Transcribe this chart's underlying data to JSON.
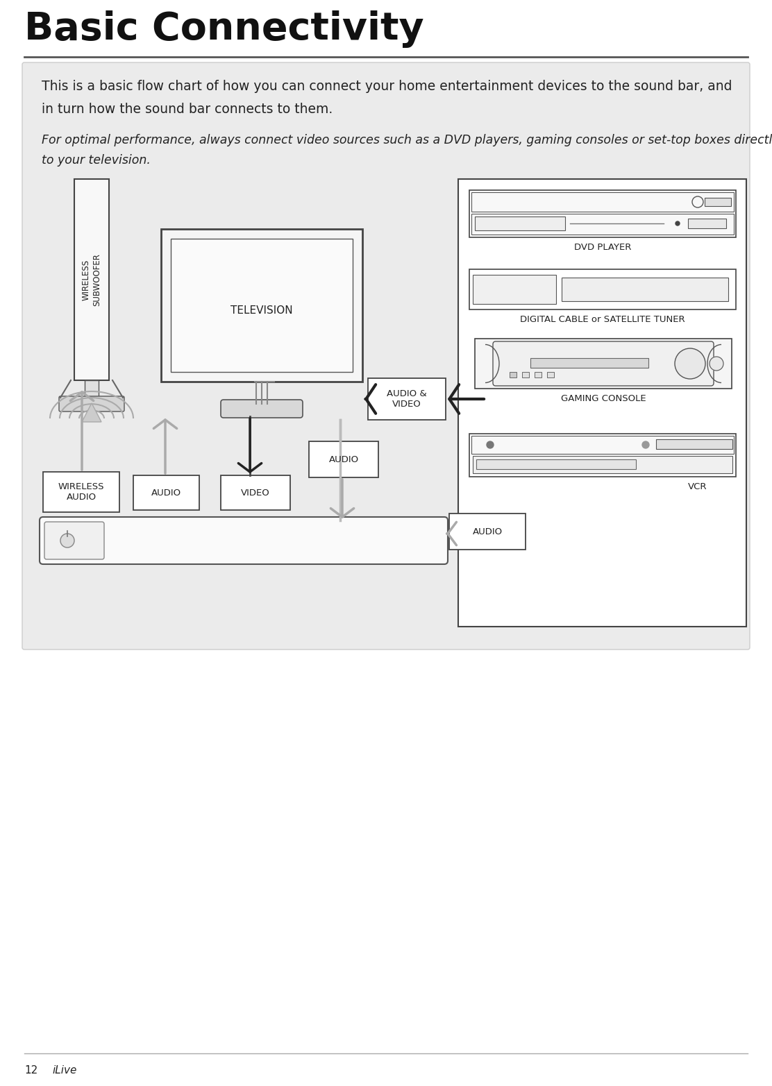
{
  "title": "Basic Connectivity",
  "page_num": "12",
  "page_label": "iLive",
  "body_text1": "This is a basic flow chart of how you can connect your home entertainment devices to the sound bar, and",
  "body_text2": "in turn how the sound bar connects to them.",
  "italic_text1": "For optimal performance, always connect video sources such as a DVD players, gaming consoles or set-top boxes directly",
  "italic_text2": "to your television.",
  "bg_color": "#ffffff",
  "panel_color": "#ebebeb",
  "panel_border": "#cccccc",
  "box_color": "#ffffff",
  "box_border": "#333333",
  "arrow_dark": "#222222",
  "arrow_gray": "#aaaaaa",
  "text_color": "#222222",
  "title_color": "#111111",
  "gray_fill": "#cccccc",
  "light_gray": "#f2f2f2"
}
